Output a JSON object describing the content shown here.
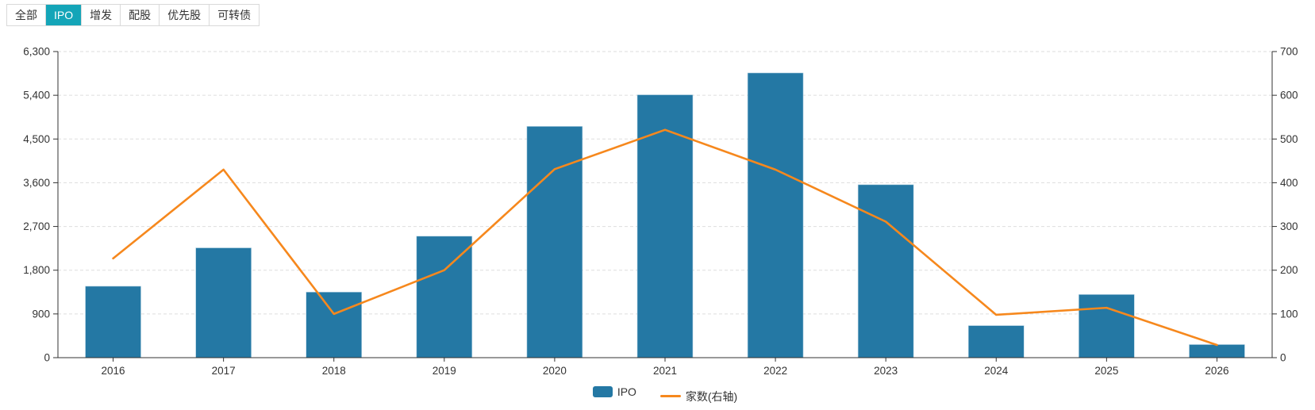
{
  "tabs": {
    "items": [
      {
        "label": "全部",
        "active": false
      },
      {
        "label": "IPO",
        "active": true
      },
      {
        "label": "增发",
        "active": false
      },
      {
        "label": "配股",
        "active": false
      },
      {
        "label": "优先股",
        "active": false
      },
      {
        "label": "可转债",
        "active": false
      }
    ]
  },
  "chart_data": {
    "type": "bar+line combo",
    "categories": [
      "2016",
      "2017",
      "2018",
      "2019",
      "2020",
      "2021",
      "2022",
      "2023",
      "2024",
      "2025",
      "2026"
    ],
    "series": [
      {
        "name": "IPO",
        "type": "bar",
        "y_axis": "left",
        "color": "#2478a4",
        "values": [
          1470,
          2260,
          1350,
          2500,
          4760,
          5410,
          5860,
          3560,
          660,
          1300,
          270
        ]
      },
      {
        "name": "家数(右轴)",
        "type": "line",
        "y_axis": "right",
        "color": "#f6881d",
        "values": [
          227,
          430,
          100,
          200,
          431,
          521,
          430,
          311,
          98,
          114,
          29
        ]
      }
    ],
    "left_axis": {
      "min": 0,
      "max": 6300,
      "tick_step": 900,
      "tick_labels": [
        "0",
        "900",
        "1,800",
        "2,700",
        "3,600",
        "4,500",
        "5,400",
        "6,300"
      ]
    },
    "right_axis": {
      "min": 0,
      "max": 700,
      "tick_step": 100,
      "tick_labels": [
        "0",
        "100",
        "200",
        "300",
        "400",
        "500",
        "600",
        "700"
      ]
    },
    "grid": "horizontal dashed gridlines on",
    "legend_position": "bottom-center"
  },
  "colors": {
    "active_tab": "#14a5b8",
    "bar": "#2478a4",
    "line": "#f6881d",
    "axis": "#333333",
    "gridline": "#dddddd",
    "tick_text": "#333333"
  }
}
